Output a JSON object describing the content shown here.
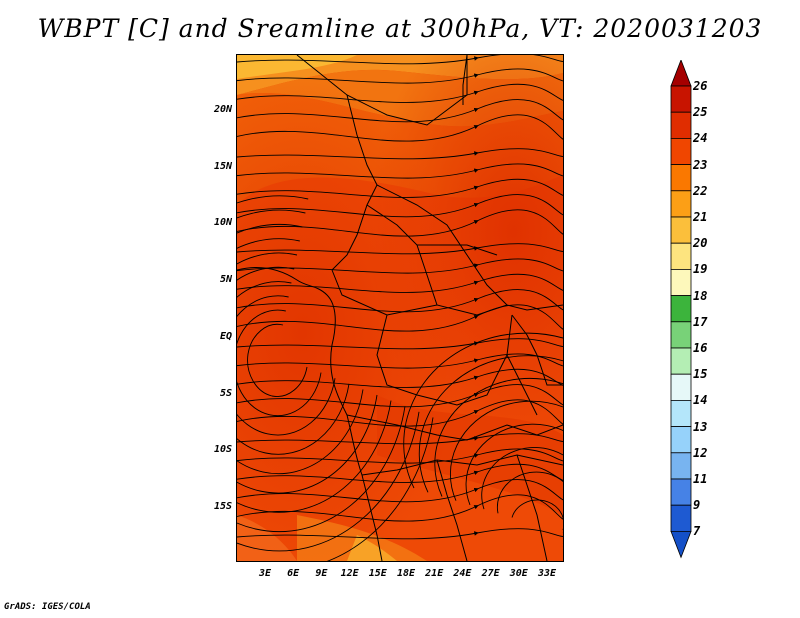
{
  "title": "WBPT [C] and Sreamline at 300hPa, VT: 2020031203",
  "footer": "GrADS: IGES/COLA",
  "map": {
    "lat_ticks": [
      "20N",
      "15N",
      "10N",
      "5N",
      "EQ",
      "5S",
      "10S",
      "15S"
    ],
    "lon_ticks": [
      "3E",
      "6E",
      "9E",
      "12E",
      "15E",
      "18E",
      "21E",
      "24E",
      "27E",
      "30E",
      "33E"
    ],
    "layers": [
      "wbpt-shading",
      "streamlines",
      "country-borders",
      "coastline"
    ]
  },
  "colorbar": {
    "labels": [
      "26",
      "25",
      "24",
      "23",
      "22",
      "21",
      "20",
      "19",
      "18",
      "17",
      "16",
      "15",
      "14",
      "13",
      "12",
      "11",
      "9",
      "7"
    ],
    "colors": [
      "#a50000",
      "#c81400",
      "#e02d00",
      "#f04600",
      "#fa7800",
      "#fc9f16",
      "#fbbf3b",
      "#fde47f",
      "#fdf8bb",
      "#3cb43c",
      "#78d278",
      "#b4eeb4",
      "#e6f8f8",
      "#b4e6fa",
      "#96d2fa",
      "#78b4f0",
      "#4682e6",
      "#1e5ad2",
      "#1450c8"
    ]
  }
}
